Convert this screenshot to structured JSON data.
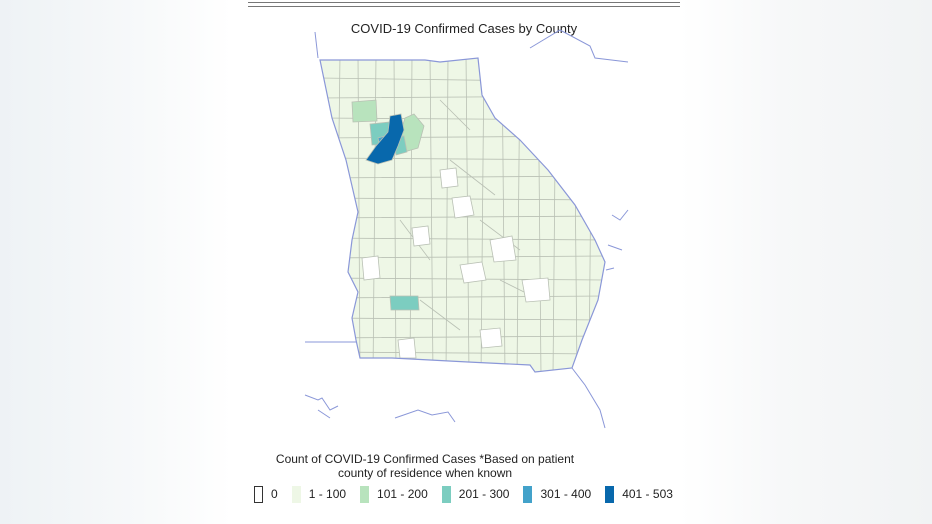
{
  "title": "COVID-19 Confirmed Cases by County",
  "legend": {
    "title_line1": "Count of COVID-19 Confirmed Cases *Based on patient",
    "title_line2": "county of residence when known",
    "items": [
      {
        "label": "0",
        "color": "#ffffff",
        "border": "#333333"
      },
      {
        "label": "1 - 100",
        "color": "#eef7e6",
        "border": "#eef7e6"
      },
      {
        "label": "101 - 200",
        "color": "#b8e3bd",
        "border": "#b8e3bd"
      },
      {
        "label": "201 - 300",
        "color": "#7ccdc0",
        "border": "#7ccdc0"
      },
      {
        "label": "301 - 400",
        "color": "#43a2ca",
        "border": "#43a2ca"
      },
      {
        "label": "401 - 503",
        "color": "#0868ac",
        "border": "#0868ac"
      }
    ]
  },
  "colors": {
    "state_outline": "#8a97d8",
    "county_lines": "#b9c0b4",
    "default_fill": "#eef7e6"
  }
}
